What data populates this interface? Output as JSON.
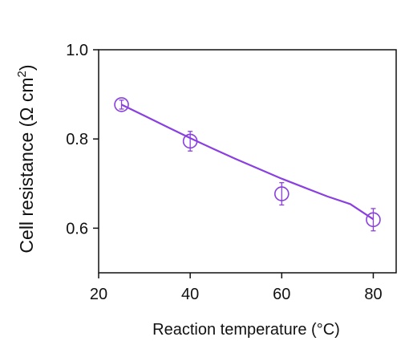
{
  "chart_data": {
    "type": "line",
    "xlabel": "Reaction temperature (°C)",
    "ylabel_main": "Cell resistance (Ω cm",
    "ylabel_sup": "2",
    "ylabel_close": ")",
    "xlim": [
      20,
      85
    ],
    "ylim": [
      0.5,
      1.0
    ],
    "x_ticks": [
      20,
      40,
      60,
      80
    ],
    "x_tick_labels": [
      "20",
      "40",
      "60",
      "80"
    ],
    "y_ticks": [
      0.6,
      0.8,
      1.0
    ],
    "y_tick_labels": [
      "0.6",
      "0.8",
      "1.0"
    ],
    "grid": false,
    "color": "#8a3fe0",
    "series": [
      {
        "x": [
          25,
          40,
          60,
          80
        ],
        "y": [
          0.877,
          0.795,
          0.677,
          0.619
        ],
        "y_err": [
          0.01,
          0.022,
          0.025,
          0.025
        ]
      }
    ],
    "fit_curve": {
      "x": [
        25,
        30,
        35,
        40,
        45,
        50,
        55,
        60,
        65,
        70,
        75,
        80
      ],
      "y": [
        0.877,
        0.852,
        0.827,
        0.802,
        0.778,
        0.755,
        0.733,
        0.711,
        0.691,
        0.671,
        0.654,
        0.62
      ]
    }
  }
}
